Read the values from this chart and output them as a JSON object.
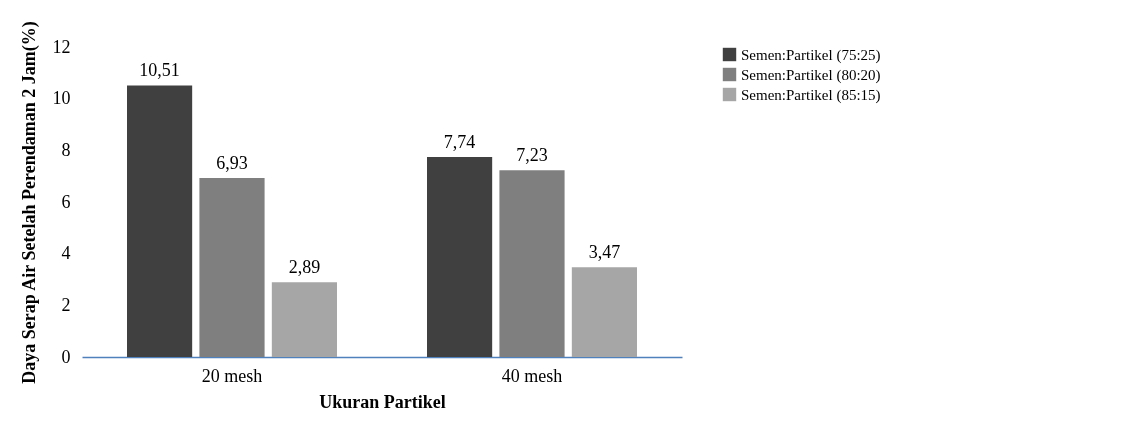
{
  "chart_data": {
    "type": "bar",
    "xlabel": "Ukuran Partikel",
    "ylabel": "Daya Serap Air Setelah Perendaman 2 Jam(%)",
    "categories": [
      "20 mesh",
      "40 mesh"
    ],
    "series": [
      {
        "name": "Semen:Partikel (75:25)",
        "color": "#404040",
        "values": [
          10.51,
          7.74
        ],
        "value_labels": [
          "10,51",
          "7,74"
        ]
      },
      {
        "name": "Semen:Partikel (80:20)",
        "color": "#7f7f7f",
        "values": [
          6.93,
          7.23
        ],
        "value_labels": [
          "6,93",
          "7,23"
        ]
      },
      {
        "name": "Semen:Partikel (85:15)",
        "color": "#a6a6a6",
        "values": [
          2.89,
          3.47
        ],
        "value_labels": [
          "2,89",
          "3,47"
        ]
      }
    ],
    "ylim": [
      0,
      12
    ],
    "yticks": [
      0,
      2,
      4,
      6,
      8,
      10,
      12
    ],
    "grid": false,
    "legend": "right"
  }
}
